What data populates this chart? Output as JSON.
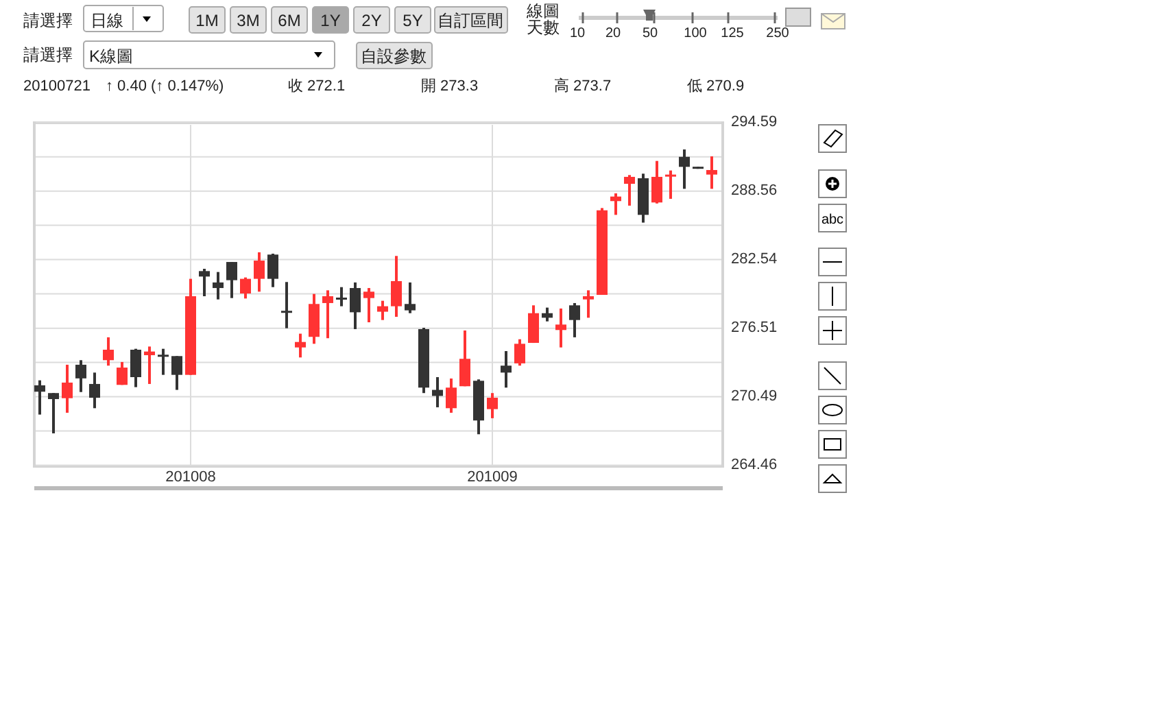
{
  "chart_data": {
    "type": "candlestick",
    "categories": [
      null,
      null,
      null,
      null,
      null,
      null,
      null,
      null,
      null,
      null,
      null,
      "201008",
      null,
      null,
      null,
      null,
      null,
      null,
      null,
      null,
      null,
      null,
      null,
      null,
      null,
      null,
      null,
      null,
      null,
      null,
      null,
      null,
      null,
      "201009",
      null,
      null,
      null,
      null,
      null,
      null,
      null,
      null,
      null,
      null,
      null,
      null,
      null,
      null,
      null,
      null
    ],
    "ohlc": [
      [
        271.49,
        271.93,
        268.92,
        270.93
      ],
      [
        270.81,
        270.81,
        267.27,
        270.28
      ],
      [
        270.36,
        273.3,
        269.08,
        271.73
      ],
      [
        273.3,
        273.7,
        270.9,
        272.1
      ],
      [
        271.61,
        272.61,
        269.48,
        270.4
      ],
      [
        273.7,
        275.71,
        273.22,
        274.62
      ],
      [
        271.53,
        273.54,
        271.53,
        273.05
      ],
      [
        274.62,
        274.7,
        271.33,
        272.21
      ],
      [
        274.14,
        274.9,
        271.61,
        274.46
      ],
      [
        274.18,
        274.7,
        272.41,
        274.1
      ],
      [
        274.06,
        274.06,
        271.09,
        272.41
      ],
      [
        272.41,
        280.85,
        272.41,
        279.32
      ],
      [
        281.53,
        281.73,
        279.32,
        281.05
      ],
      [
        280.53,
        281.45,
        279.04,
        280.04
      ],
      [
        282.33,
        282.33,
        279.16,
        280.73
      ],
      [
        279.56,
        280.97,
        279.12,
        280.85
      ],
      [
        280.85,
        283.18,
        279.72,
        282.45
      ],
      [
        282.98,
        283.06,
        280.12,
        280.85
      ],
      [
        278.04,
        280.57,
        276.51,
        277.87
      ],
      [
        274.82,
        276.03,
        273.94,
        275.3
      ],
      [
        275.75,
        279.52,
        275.14,
        278.64
      ],
      [
        278.72,
        279.84,
        275.63,
        279.32
      ],
      [
        279.2,
        280.12,
        278.44,
        279.04
      ],
      [
        280.04,
        280.53,
        276.43,
        277.91
      ],
      [
        279.16,
        280.04,
        277.03,
        279.72
      ],
      [
        277.96,
        278.92,
        277.23,
        278.44
      ],
      [
        278.44,
        282.86,
        277.51,
        280.65
      ],
      [
        278.64,
        280.53,
        277.83,
        278.08
      ],
      [
        276.43,
        276.55,
        270.81,
        271.29
      ],
      [
        271.09,
        272.21,
        269.56,
        270.56
      ],
      [
        269.48,
        272.09,
        269.08,
        271.29
      ],
      [
        271.41,
        276.31,
        271.41,
        273.82
      ],
      [
        271.89,
        272.01,
        267.19,
        268.4
      ],
      [
        269.4,
        270.81,
        268.6,
        270.4
      ],
      [
        273.22,
        274.5,
        271.29,
        272.61
      ],
      [
        273.42,
        275.54,
        273.22,
        275.14
      ],
      [
        275.22,
        278.52,
        275.22,
        277.83
      ],
      [
        277.83,
        278.32,
        277.11,
        277.43
      ],
      [
        276.35,
        278.24,
        274.82,
        276.83
      ],
      [
        278.52,
        278.72,
        275.71,
        277.23
      ],
      [
        279.04,
        279.84,
        277.43,
        279.32
      ],
      [
        279.44,
        287.07,
        279.44,
        286.87
      ],
      [
        287.68,
        288.36,
        286.47,
        288.08
      ],
      [
        289.2,
        289.97,
        287.28,
        289.81
      ],
      [
        289.69,
        290.09,
        285.79,
        286.47
      ],
      [
        287.56,
        291.21,
        287.47,
        289.81
      ],
      [
        289.85,
        290.37,
        287.88,
        290.01
      ],
      [
        291.57,
        292.22,
        288.76,
        290.69
      ],
      [
        290.7,
        290.7,
        290.52,
        290.52
      ],
      [
        290.01,
        291.61,
        288.76,
        290.41
      ]
    ],
    "colors": [
      "#333333",
      "#333333",
      "#ff3333",
      "#333333",
      "#333333",
      "#ff3333",
      "#ff3333",
      "#333333",
      "#ff3333",
      "#333333",
      "#333333",
      "#ff3333",
      "#333333",
      "#333333",
      "#333333",
      "#ff3333",
      "#ff3333",
      "#333333",
      "#333333",
      "#ff3333",
      "#ff3333",
      "#ff3333",
      "#333333",
      "#333333",
      "#ff3333",
      "#ff3333",
      "#ff3333",
      "#333333",
      "#333333",
      "#333333",
      "#ff3333",
      "#ff3333",
      "#333333",
      "#ff3333",
      "#333333",
      "#ff3333",
      "#ff3333",
      "#333333",
      "#ff3333",
      "#333333",
      "#ff3333",
      "#ff3333",
      "#ff3333",
      "#ff3333",
      "#333333",
      "#ff3333",
      "#ff3333",
      "#333333",
      "#333333",
      "#ff3333"
    ],
    "ylim": [
      264.46,
      294.59
    ],
    "yticks": [
      264.46,
      {
        "value": 267.475,
        "label": null
      },
      270.49,
      {
        "value": 273.5,
        "label": null
      },
      276.51,
      {
        "value": 279.525,
        "label": null
      },
      282.54,
      {
        "value": 285.55,
        "label": null
      },
      288.56,
      {
        "value": 291.575,
        "label": null
      },
      294.59
    ],
    "grid": true,
    "annotations": [
      "請選擇",
      "日線",
      "1M",
      "3M",
      "6M",
      "1Y",
      "2Y",
      "5Y",
      "自訂區間",
      "線圖天數",
      "10",
      "20",
      "50",
      "100",
      "125",
      "250",
      "請選擇",
      "K線圖",
      "自設參數",
      "20100721",
      "↑ 0.40 (↑ 0.147%)",
      "收 272.1",
      "開 273.3",
      "高 273.7",
      "低 270.9",
      "abc"
    ]
  }
}
